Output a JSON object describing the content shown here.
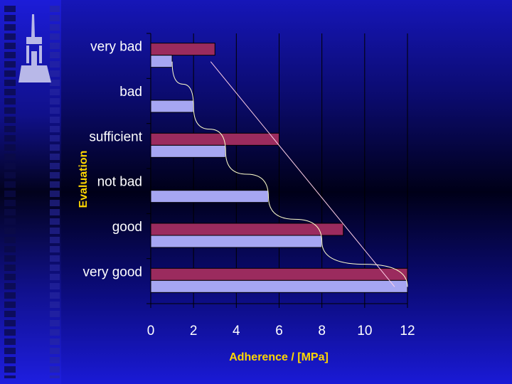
{
  "chart_data": {
    "type": "bar",
    "orientation": "horizontal",
    "categories": [
      "very bad",
      "bad",
      "sufficient",
      "not bad",
      "good",
      "very good"
    ],
    "series": [
      {
        "values": [
          3,
          null,
          6,
          null,
          9,
          12
        ],
        "color": "#9b2b5e"
      },
      {
        "values": [
          1,
          2,
          3.5,
          5.5,
          8,
          12
        ],
        "color": "#a6a6f2"
      }
    ],
    "trend_lines": [
      {
        "points": [
          [
            1,
            "very bad"
          ],
          [
            2,
            "bad"
          ],
          [
            3.5,
            "sufficient"
          ],
          [
            5.5,
            "not bad"
          ],
          [
            8,
            "good"
          ],
          [
            12,
            "very good"
          ]
        ],
        "color": "#ffffcc"
      },
      {
        "points": [
          [
            2.8,
            "very bad"
          ],
          [
            11.4,
            "very good"
          ]
        ],
        "color": "#ffd0e8"
      }
    ],
    "xlabel": "Adherence / [MPa]",
    "ylabel": "Evaluation",
    "xlim": [
      0,
      12
    ],
    "xticks": [
      0,
      2,
      4,
      6,
      8,
      10,
      12
    ],
    "grid": "vertical",
    "colors": {
      "axis_text": "#ffffff",
      "axis_title": "#ffd700",
      "gridline": "#000000"
    }
  },
  "logo": {
    "icon": "tower-icon"
  }
}
